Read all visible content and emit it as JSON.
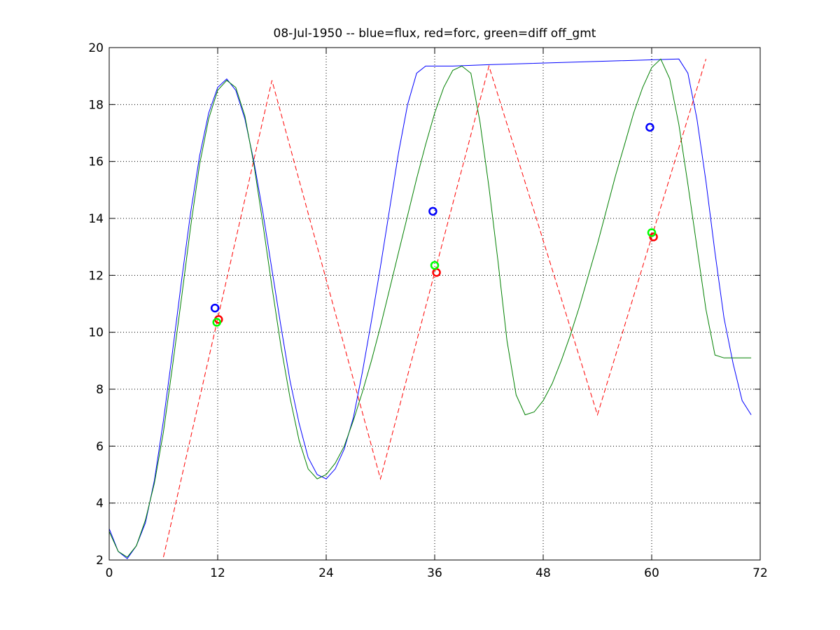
{
  "chart_data": {
    "type": "line",
    "title": "08-Jul-1950 -- blue=flux, red=forc, green=diff off_gmt",
    "xlabel": "",
    "ylabel": "",
    "xlim": [
      0,
      72
    ],
    "ylim": [
      2,
      20
    ],
    "xticks": [
      0,
      12,
      24,
      36,
      48,
      60,
      72
    ],
    "yticks": [
      2,
      4,
      6,
      8,
      10,
      12,
      14,
      16,
      18,
      20
    ],
    "grid": true,
    "legend": "none",
    "series": [
      {
        "color": "#0000ff",
        "style": "solid",
        "x": [
          0,
          1,
          2,
          3,
          4,
          5,
          6,
          7,
          8,
          9,
          10,
          11,
          12,
          13,
          14,
          15,
          16,
          17,
          18,
          19,
          20,
          21,
          22,
          23,
          24,
          25,
          26,
          27,
          28,
          29,
          30,
          31,
          32,
          33,
          34,
          35,
          36,
          37,
          38,
          42,
          63,
          64,
          65,
          66,
          67,
          68,
          69,
          70,
          71
        ],
        "y": [
          3.1,
          2.3,
          2.05,
          2.5,
          3.3,
          4.8,
          6.9,
          9.3,
          11.8,
          14.2,
          16.2,
          17.7,
          18.6,
          18.9,
          18.5,
          17.5,
          16.0,
          14.2,
          12.2,
          10.2,
          8.3,
          6.8,
          5.6,
          5.0,
          4.85,
          5.2,
          5.9,
          7.0,
          8.6,
          10.4,
          12.3,
          14.3,
          16.3,
          18.0,
          19.1,
          19.35,
          19.35,
          19.35,
          19.35,
          19.4,
          19.6,
          19.1,
          17.5,
          15.3,
          12.8,
          10.5,
          8.9,
          7.6,
          7.1
        ]
      },
      {
        "color": "#ff0000",
        "style": "dashed",
        "x": [
          6,
          18,
          30,
          42,
          54,
          66
        ],
        "y": [
          2.1,
          18.85,
          4.85,
          19.35,
          7.1,
          19.6
        ]
      },
      {
        "color": "#008000",
        "style": "solid",
        "x": [
          0,
          1,
          2,
          3,
          4,
          5,
          6,
          7,
          8,
          9,
          10,
          11,
          12,
          13,
          14,
          15,
          16,
          17,
          18,
          19,
          20,
          21,
          22,
          23,
          24,
          25,
          26,
          27,
          28,
          29,
          30,
          31,
          32,
          33,
          34,
          35,
          36,
          37,
          38,
          39,
          40,
          41,
          42,
          43,
          44,
          45,
          46,
          47,
          48,
          49,
          50,
          51,
          52,
          53,
          54,
          55,
          56,
          57,
          58,
          59,
          60,
          61,
          62,
          63,
          64,
          65,
          66,
          67,
          68,
          69,
          70,
          71
        ],
        "y": [
          3.0,
          2.3,
          2.1,
          2.5,
          3.4,
          4.7,
          6.5,
          8.8,
          11.2,
          13.7,
          15.9,
          17.5,
          18.5,
          18.85,
          18.6,
          17.6,
          15.9,
          13.8,
          11.6,
          9.5,
          7.7,
          6.2,
          5.2,
          4.85,
          5.0,
          5.4,
          6.0,
          6.9,
          7.9,
          9.0,
          10.2,
          11.5,
          12.8,
          14.1,
          15.4,
          16.6,
          17.7,
          18.6,
          19.2,
          19.35,
          19.1,
          17.4,
          15.1,
          12.5,
          9.7,
          7.8,
          7.1,
          7.2,
          7.6,
          8.2,
          9.0,
          9.9,
          10.9,
          12.0,
          13.1,
          14.3,
          15.5,
          16.6,
          17.7,
          18.6,
          19.3,
          19.6,
          18.9,
          17.3,
          15.2,
          13.0,
          10.8,
          9.2,
          9.1,
          9.1,
          9.1,
          9.1
        ]
      }
    ],
    "markers": [
      {
        "color": "#0000ff",
        "x": 11.7,
        "y": 10.85
      },
      {
        "color": "#ff0000",
        "x": 12.1,
        "y": 10.45
      },
      {
        "color": "#00ff00",
        "x": 11.9,
        "y": 10.35
      },
      {
        "color": "#0000ff",
        "x": 35.8,
        "y": 14.25
      },
      {
        "color": "#ff0000",
        "x": 36.2,
        "y": 12.1
      },
      {
        "color": "#00ff00",
        "x": 36.0,
        "y": 12.35
      },
      {
        "color": "#0000ff",
        "x": 59.8,
        "y": 17.2
      },
      {
        "color": "#ff0000",
        "x": 60.2,
        "y": 13.35
      },
      {
        "color": "#00ff00",
        "x": 60.0,
        "y": 13.5
      }
    ]
  }
}
